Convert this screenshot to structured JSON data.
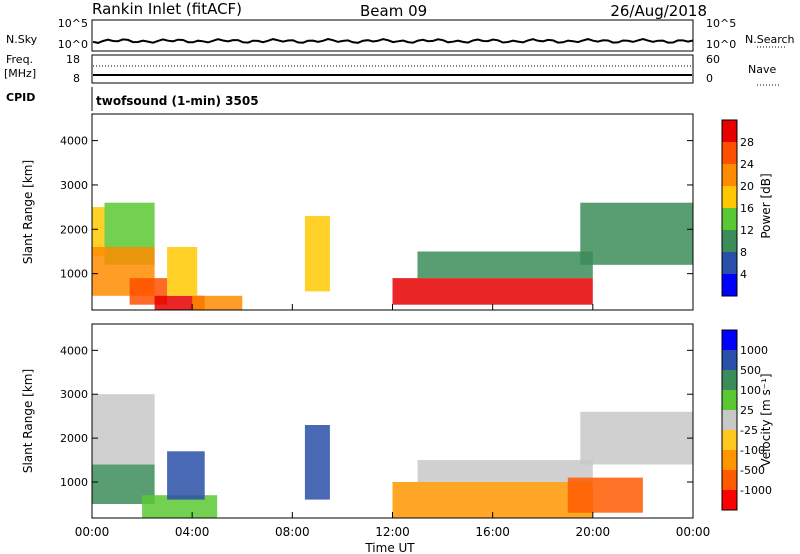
{
  "header": {
    "station": "Rankin Inlet (fitACF)",
    "beam": "Beam 09",
    "date": "26/Aug/2018"
  },
  "noise_panel": {
    "left_label": "N.Sky",
    "right_label": "N.Search",
    "left_ticks": [
      "10^5",
      "10^0"
    ],
    "right_ticks": [
      "10^5",
      "10^0"
    ]
  },
  "freq_panel": {
    "label_line1": "Freq.",
    "label_line2": "[MHz]",
    "right_label": "Nave",
    "left_ticks": [
      "18",
      "8"
    ],
    "right_ticks": [
      "60",
      "0"
    ]
  },
  "cpid": {
    "label": "CPID",
    "value": "twofsound (1-min) 3505"
  },
  "colors": {
    "power": [
      "#0000ff",
      "#2a4fa8",
      "#3c8c5a",
      "#5ac832",
      "#ffc800",
      "#ff8c00",
      "#ff5000",
      "#e60000"
    ],
    "velocity": [
      "#ff0000",
      "#ff5a00",
      "#ff9600",
      "#ffc81e",
      "#c8c8c8",
      "#5ac832",
      "#3c8c5a",
      "#2a4fa8",
      "#0000ff"
    ]
  },
  "chart_data": [
    {
      "type": "heatmap",
      "name": "power",
      "ylabel": "Slant Range [km]",
      "yticks": [
        "1000",
        "2000",
        "3000",
        "4000"
      ],
      "ylim": [
        180,
        4600
      ],
      "xlim": [
        0,
        24
      ],
      "colorbar": {
        "label": "Power [dB]",
        "ticks": [
          "4",
          "8",
          "12",
          "16",
          "20",
          "24",
          "28"
        ],
        "range": [
          0,
          32
        ]
      },
      "regions": [
        {
          "t": [
            0.0,
            0.5
          ],
          "r": [
            1400,
            2500
          ],
          "level": 4
        },
        {
          "t": [
            0.5,
            2.5
          ],
          "r": [
            1200,
            2600
          ],
          "level": 3
        },
        {
          "t": [
            0.0,
            2.5
          ],
          "r": [
            500,
            1600
          ],
          "level": 5
        },
        {
          "t": [
            1.5,
            3.0
          ],
          "r": [
            300,
            900
          ],
          "level": 6
        },
        {
          "t": [
            2.5,
            4.5
          ],
          "r": [
            180,
            500
          ],
          "level": 7
        },
        {
          "t": [
            3.0,
            4.2
          ],
          "r": [
            500,
            1600
          ],
          "level": 4
        },
        {
          "t": [
            4.0,
            6.0
          ],
          "r": [
            180,
            500
          ],
          "level": 5
        },
        {
          "t": [
            8.5,
            9.5
          ],
          "r": [
            600,
            2300
          ],
          "level": 4
        },
        {
          "t": [
            12.0,
            20.0
          ],
          "r": [
            300,
            900
          ],
          "level": 7
        },
        {
          "t": [
            13.0,
            20.0
          ],
          "r": [
            900,
            1500
          ],
          "level": 2
        },
        {
          "t": [
            19.5,
            24.0
          ],
          "r": [
            1200,
            2600
          ],
          "level": 2
        }
      ]
    },
    {
      "type": "heatmap",
      "name": "velocity",
      "ylabel": "Slant Range [km]",
      "yticks": [
        "1000",
        "2000",
        "3000",
        "4000"
      ],
      "ylim": [
        180,
        4600
      ],
      "xlim": [
        0,
        24
      ],
      "xlabel": "Time UT",
      "xticks": [
        "00:00",
        "04:00",
        "08:00",
        "12:00",
        "16:00",
        "20:00",
        "00:00"
      ],
      "colorbar": {
        "label": "Velocity [m s⁻¹]",
        "ticks": [
          "1000",
          "500",
          "100",
          "25",
          "-25",
          "-100",
          "-500",
          "-1000"
        ],
        "range": [
          -1200,
          1200
        ]
      },
      "regions": [
        {
          "t": [
            0.0,
            2.5
          ],
          "r": [
            1400,
            3000
          ],
          "level": 4
        },
        {
          "t": [
            0.0,
            2.5
          ],
          "r": [
            500,
            1400
          ],
          "level": 6
        },
        {
          "t": [
            2.0,
            5.0
          ],
          "r": [
            180,
            700
          ],
          "level": 5
        },
        {
          "t": [
            3.0,
            4.5
          ],
          "r": [
            600,
            1700
          ],
          "level": 7
        },
        {
          "t": [
            8.5,
            9.5
          ],
          "r": [
            600,
            2300
          ],
          "level": 7
        },
        {
          "t": [
            12.0,
            20.0
          ],
          "r": [
            180,
            1000
          ],
          "level": 2
        },
        {
          "t": [
            13.0,
            20.0
          ],
          "r": [
            1000,
            1500
          ],
          "level": 4
        },
        {
          "t": [
            19.5,
            24.0
          ],
          "r": [
            1400,
            2600
          ],
          "level": 4
        },
        {
          "t": [
            19.0,
            22.0
          ],
          "r": [
            300,
            1100
          ],
          "level": 1
        }
      ]
    }
  ]
}
